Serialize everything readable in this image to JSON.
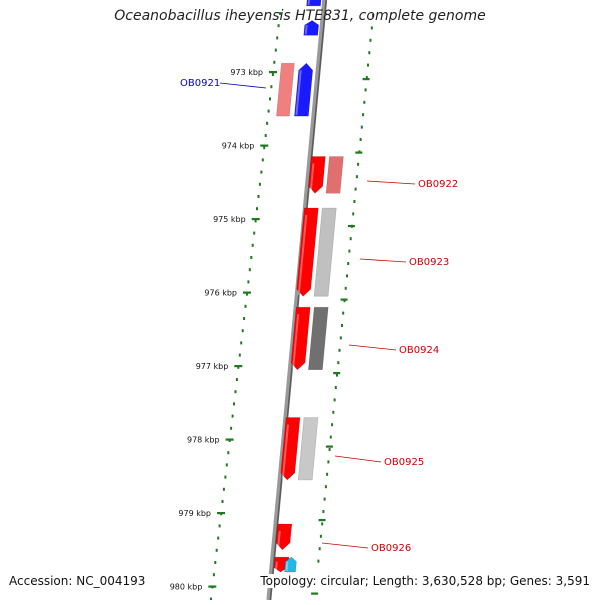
{
  "title": "Oceanobacillus iheyensis HTE831, complete genome",
  "footer": {
    "accession": "Accession: NC_004193",
    "topology": "Topology: circular; Length: 3,630,528 bp; Genes: 3,591"
  },
  "colors": {
    "forward_gene": "#1a1aff",
    "reverse_gene": "#ff0000",
    "tick": "#1f7a1f",
    "backbone": "#808080",
    "label_reverse": "#cc0000",
    "label_forward": "#0000cc"
  },
  "diagram": {
    "ticks": [
      {
        "kbp": 973,
        "label": "973 kbp"
      },
      {
        "kbp": 974,
        "label": "974 kbp"
      },
      {
        "kbp": 975,
        "label": "975 kbp"
      },
      {
        "kbp": 976,
        "label": "976 kbp"
      },
      {
        "kbp": 977,
        "label": "977 kbp"
      },
      {
        "kbp": 978,
        "label": "978 kbp"
      },
      {
        "kbp": 979,
        "label": "979 kbp"
      },
      {
        "kbp": 980,
        "label": "980 kbp"
      }
    ],
    "genes": [
      {
        "id": "OB0921",
        "label": "OB0921",
        "strand": "+",
        "start_kbp": 972.88,
        "end_kbp": 973.6,
        "shade": "#f08080"
      },
      {
        "id": "OB0922",
        "label": "OB0922",
        "strand": "-",
        "start_kbp": 974.15,
        "end_kbp": 974.65,
        "shade": "#e07070"
      },
      {
        "id": "OB0923",
        "label": "OB0923",
        "strand": "-",
        "start_kbp": 974.85,
        "end_kbp": 976.05,
        "shade": "#c0c0c0"
      },
      {
        "id": "OB0924",
        "label": "OB0924",
        "strand": "-",
        "start_kbp": 976.2,
        "end_kbp": 977.05,
        "shade": "#707070"
      },
      {
        "id": "OB0925",
        "label": "OB0925",
        "strand": "-",
        "start_kbp": 977.7,
        "end_kbp": 978.55,
        "shade": "#c8c8c8"
      },
      {
        "id": "OB0926",
        "label": "OB0926",
        "strand": "-",
        "start_kbp": 979.15,
        "end_kbp": 979.5,
        "shade": ""
      },
      {
        "id": "upper-forward",
        "label": "",
        "strand": "+",
        "start_kbp": 972.3,
        "end_kbp": 972.5,
        "shade": ""
      },
      {
        "id": "top-forward",
        "label": "",
        "strand": "+",
        "start_kbp": 971.9,
        "end_kbp": 972.1,
        "shade": ""
      },
      {
        "id": "bottom-reverse",
        "label": "",
        "strand": "-",
        "start_kbp": 979.6,
        "end_kbp": 979.9,
        "shade": ""
      },
      {
        "id": "bottom-cyan",
        "label": "",
        "strand": "+",
        "start_kbp": 979.6,
        "end_kbp": 979.9,
        "shade": "#22b8e8"
      }
    ]
  }
}
